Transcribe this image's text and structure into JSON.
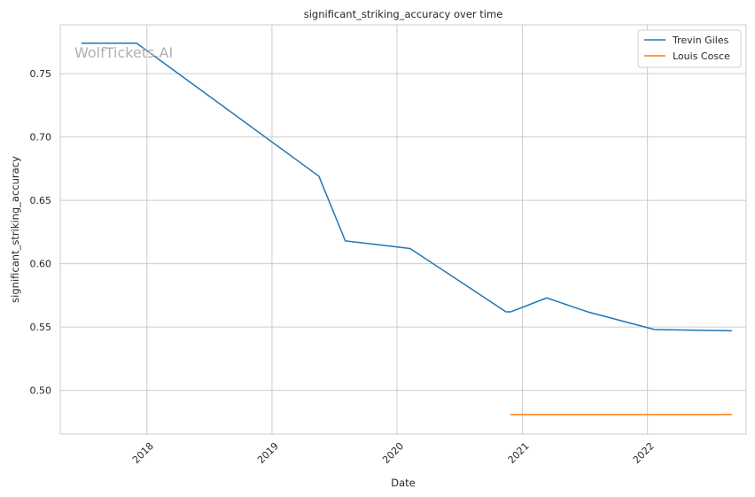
{
  "chart_data": {
    "type": "line",
    "title": "significant_striking_accuracy over time",
    "xlabel": "Date",
    "ylabel": "significant_striking_accuracy",
    "watermark": "WolfTickets.AI",
    "x_type": "date",
    "xlim": [
      "2017-04-23",
      "2022-10-16"
    ],
    "ylim": [
      0.4655,
      0.7885
    ],
    "x_ticks": [
      {
        "date": "2018-01-01",
        "label": "2018"
      },
      {
        "date": "2019-01-01",
        "label": "2019"
      },
      {
        "date": "2020-01-01",
        "label": "2020"
      },
      {
        "date": "2021-01-01",
        "label": "2021"
      },
      {
        "date": "2022-01-01",
        "label": "2022"
      }
    ],
    "y_ticks": [
      0.5,
      0.55,
      0.6,
      0.65,
      0.7,
      0.75
    ],
    "y_tick_labels": [
      "0.50",
      "0.55",
      "0.60",
      "0.65",
      "0.70",
      "0.75"
    ],
    "grid": true,
    "legend_position": "top-right",
    "series": [
      {
        "name": "Trevin Giles",
        "color": "#1f77b4",
        "points": [
          {
            "x": "2017-06-25",
            "y": 0.774
          },
          {
            "x": "2017-12-02",
            "y": 0.774
          },
          {
            "x": "2019-05-18",
            "y": 0.669
          },
          {
            "x": "2019-08-03",
            "y": 0.618
          },
          {
            "x": "2020-02-08",
            "y": 0.612
          },
          {
            "x": "2020-11-14",
            "y": 0.562
          },
          {
            "x": "2020-11-28",
            "y": 0.562
          },
          {
            "x": "2021-03-13",
            "y": 0.573
          },
          {
            "x": "2021-07-10",
            "y": 0.562
          },
          {
            "x": "2022-01-22",
            "y": 0.548
          },
          {
            "x": "2022-09-03",
            "y": 0.547
          }
        ]
      },
      {
        "name": "Louis Cosce",
        "color": "#ff7f0e",
        "points": [
          {
            "x": "2020-11-28",
            "y": 0.481
          },
          {
            "x": "2022-09-03",
            "y": 0.481
          }
        ]
      }
    ]
  }
}
